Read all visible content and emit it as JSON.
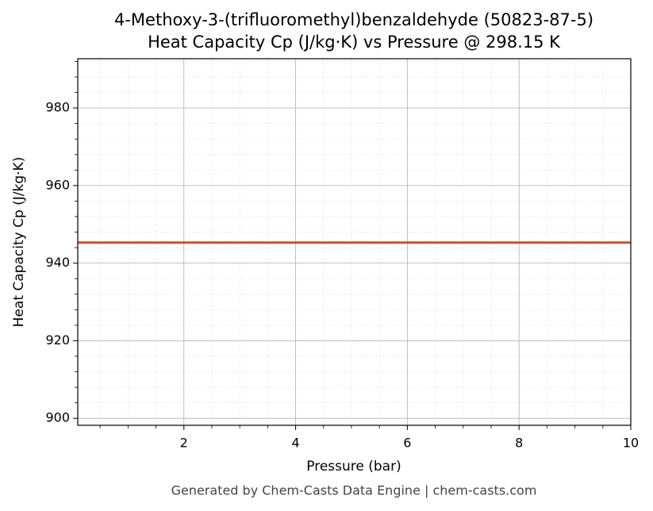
{
  "chart_data": {
    "type": "line",
    "title": "4-Methoxy-3-(trifluoromethyl)benzaldehyde (50823-87-5)",
    "subtitle": "Heat Capacity Cp (J/kg·K) vs Pressure @ 298.15 K",
    "x_label": "Pressure (bar)",
    "y_label": "Heat Capacity Cp (J/kg·K)",
    "footer": "Generated by Chem-Casts Data Engine | chem-casts.com",
    "x": [
      0.1,
      10
    ],
    "series": [
      {
        "name": "Cp",
        "color": "#c9522a",
        "values": [
          945.3,
          945.3
        ]
      }
    ],
    "xlim": [
      0.1,
      10
    ],
    "ylim": [
      898.2,
      992.7
    ],
    "xticks": [
      2,
      4,
      6,
      8,
      10
    ],
    "yticks": [
      900,
      920,
      940,
      960,
      980
    ],
    "xminorticks": [
      0.5,
      1,
      1.5,
      2.5,
      3,
      3.5,
      4.5,
      5,
      5.5,
      6.5,
      7,
      7.5,
      8.5,
      9,
      9.5
    ],
    "yminorticks": [
      904,
      908,
      912,
      916,
      924,
      928,
      932,
      936,
      944,
      948,
      952,
      956,
      964,
      968,
      972,
      976,
      984,
      988,
      992
    ],
    "grid": true,
    "minor_grid": true
  }
}
